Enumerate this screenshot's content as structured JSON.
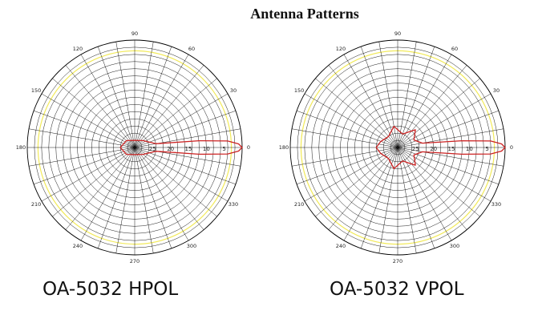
{
  "title": "Antenna Patterns",
  "colors": {
    "grid": "#000000",
    "reference_ring": "#f2ea5a",
    "pattern": "#cc2222"
  },
  "chart_data": [
    {
      "type": "polar",
      "title": "OA-5032 HPOL",
      "angle_labels": [
        "0",
        "30",
        "60",
        "90",
        "120",
        "150",
        "180",
        "210",
        "240",
        "270",
        "300",
        "330"
      ],
      "radial_labels": [
        "5",
        "10",
        "15",
        "20",
        "25"
      ],
      "series": [
        {
          "points": [
            {
              "angle": 0,
              "value": 0
            },
            {
              "angle": 2,
              "value": -1
            },
            {
              "angle": 4,
              "value": -4
            },
            {
              "angle": 6,
              "value": -12
            },
            {
              "angle": 10,
              "value": -24
            },
            {
              "angle": 40,
              "value": -27
            },
            {
              "angle": 90,
              "value": -28
            },
            {
              "angle": 140,
              "value": -27
            },
            {
              "angle": 180,
              "value": -26
            },
            {
              "angle": 220,
              "value": -27
            },
            {
              "angle": 270,
              "value": -28
            },
            {
              "angle": 320,
              "value": -27
            },
            {
              "angle": 350,
              "value": -24
            },
            {
              "angle": 354,
              "value": -12
            },
            {
              "angle": 356,
              "value": -4
            },
            {
              "angle": 358,
              "value": -1
            }
          ]
        }
      ]
    },
    {
      "type": "polar",
      "title": "OA-5032 VPOL",
      "angle_labels": [
        "0",
        "30",
        "60",
        "90",
        "120",
        "150",
        "180",
        "210",
        "240",
        "270",
        "300",
        "330"
      ],
      "radial_labels": [
        "5",
        "10",
        "15",
        "20",
        "25"
      ],
      "series": [
        {
          "points": [
            {
              "angle": 0,
              "value": 0
            },
            {
              "angle": 2,
              "value": -1
            },
            {
              "angle": 4,
              "value": -4
            },
            {
              "angle": 6,
              "value": -12
            },
            {
              "angle": 10,
              "value": -23
            },
            {
              "angle": 25,
              "value": -25
            },
            {
              "angle": 45,
              "value": -23
            },
            {
              "angle": 70,
              "value": -26
            },
            {
              "angle": 100,
              "value": -24
            },
            {
              "angle": 130,
              "value": -26
            },
            {
              "angle": 160,
              "value": -25
            },
            {
              "angle": 180,
              "value": -24
            },
            {
              "angle": 200,
              "value": -25
            },
            {
              "angle": 230,
              "value": -26
            },
            {
              "angle": 260,
              "value": -24
            },
            {
              "angle": 290,
              "value": -26
            },
            {
              "angle": 315,
              "value": -23
            },
            {
              "angle": 335,
              "value": -25
            },
            {
              "angle": 350,
              "value": -23
            },
            {
              "angle": 354,
              "value": -12
            },
            {
              "angle": 356,
              "value": -4
            },
            {
              "angle": 358,
              "value": -1
            }
          ]
        }
      ]
    }
  ]
}
